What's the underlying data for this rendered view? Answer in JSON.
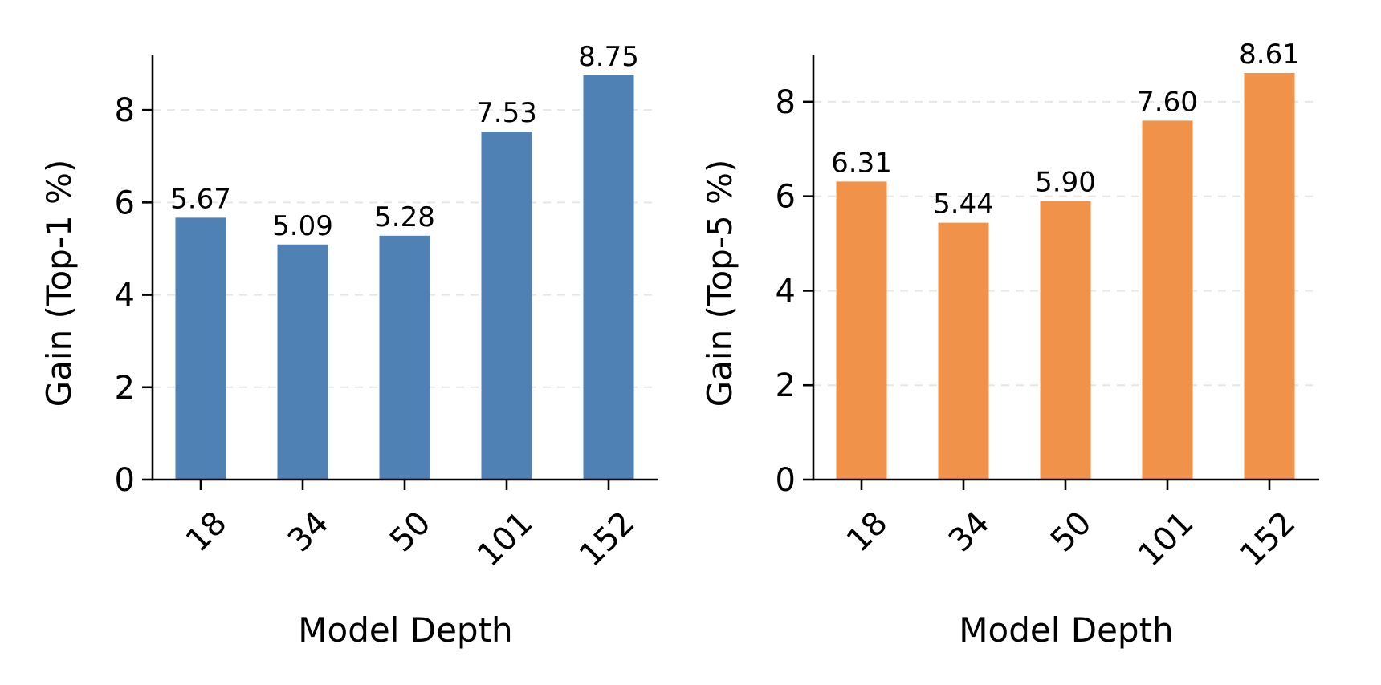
{
  "charts": [
    {
      "chart_data": {
        "type": "bar",
        "categories": [
          "18",
          "34",
          "50",
          "101",
          "152"
        ],
        "values": [
          5.67,
          5.09,
          5.28,
          7.53,
          8.75
        ],
        "value_labels": [
          "5.67",
          "5.09",
          "5.28",
          "7.53",
          "8.75"
        ],
        "title": "",
        "xlabel": "Model Depth",
        "ylabel": "Gain (Top-1 %)",
        "ylim": [
          0,
          9.2
        ],
        "yticks": [
          0,
          2,
          4,
          6,
          8
        ],
        "ytick_labels": [
          "0",
          "2",
          "4",
          "6",
          "8"
        ],
        "color": "#4f81b5",
        "grid": "y-dashed",
        "legend": "none"
      }
    },
    {
      "chart_data": {
        "type": "bar",
        "categories": [
          "18",
          "34",
          "50",
          "101",
          "152"
        ],
        "values": [
          6.31,
          5.44,
          5.9,
          7.6,
          8.61
        ],
        "value_labels": [
          "6.31",
          "5.44",
          "5.90",
          "7.60",
          "8.61"
        ],
        "title": "",
        "xlabel": "Model Depth",
        "ylabel": "Gain (Top-5 %)",
        "ylim": [
          0,
          9.0
        ],
        "yticks": [
          0,
          2,
          4,
          6,
          8
        ],
        "ytick_labels": [
          "0",
          "2",
          "4",
          "6",
          "8"
        ],
        "color": "#f0924a",
        "grid": "y-dashed",
        "legend": "none"
      }
    }
  ]
}
